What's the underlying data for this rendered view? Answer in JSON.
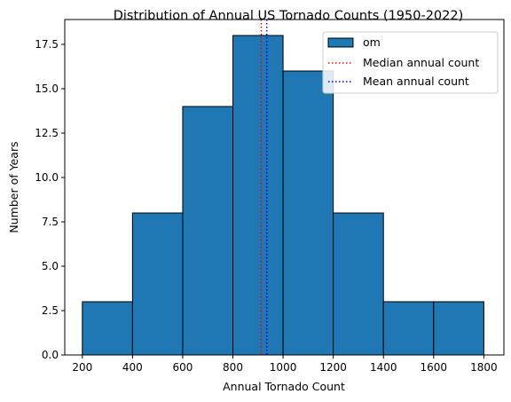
{
  "chart_data": {
    "type": "bar",
    "title": "Distribution of Annual US Tornado Counts (1950-2022)",
    "xlabel": "Annual Tornado Count",
    "ylabel": "Number of Years",
    "xlim": [
      130,
      1880
    ],
    "ylim": [
      0,
      18.9
    ],
    "bins": [
      {
        "start": 200,
        "end": 400,
        "count": 3
      },
      {
        "start": 400,
        "end": 600,
        "count": 8
      },
      {
        "start": 600,
        "end": 800,
        "count": 14
      },
      {
        "start": 800,
        "end": 1000,
        "count": 18
      },
      {
        "start": 1000,
        "end": 1200,
        "count": 16
      },
      {
        "start": 1200,
        "end": 1400,
        "count": 8
      },
      {
        "start": 1400,
        "end": 1600,
        "count": 3
      },
      {
        "start": 1600,
        "end": 1800,
        "count": 3
      }
    ],
    "bar_color": "#1f77b4",
    "bar_edge_color": "#000000",
    "x_ticks": [
      200,
      400,
      600,
      800,
      1000,
      1200,
      1400,
      1600,
      1800
    ],
    "x_tick_labels": [
      "200",
      "400",
      "600",
      "800",
      "1000",
      "1200",
      "1400",
      "1600",
      "1800"
    ],
    "y_ticks": [
      0,
      2.5,
      5,
      7.5,
      10,
      12.5,
      15,
      17.5
    ],
    "y_tick_labels": [
      "0.0",
      "2.5",
      "5.0",
      "7.5",
      "10.0",
      "12.5",
      "15.0",
      "17.5"
    ],
    "reference_lines": [
      {
        "name": "Median annual count",
        "x": 913,
        "color": "#ff0000",
        "style": "dotted"
      },
      {
        "name": "Mean annual count",
        "x": 935,
        "color": "#0000ff",
        "style": "dotted"
      }
    ],
    "legend": {
      "position": "top-right",
      "entries": [
        {
          "label": "om",
          "kind": "patch",
          "color": "#1f77b4"
        },
        {
          "label": "Median annual count",
          "kind": "line",
          "color": "#ff0000"
        },
        {
          "label": "Mean annual count",
          "kind": "line",
          "color": "#0000ff"
        }
      ]
    },
    "grid": false
  }
}
